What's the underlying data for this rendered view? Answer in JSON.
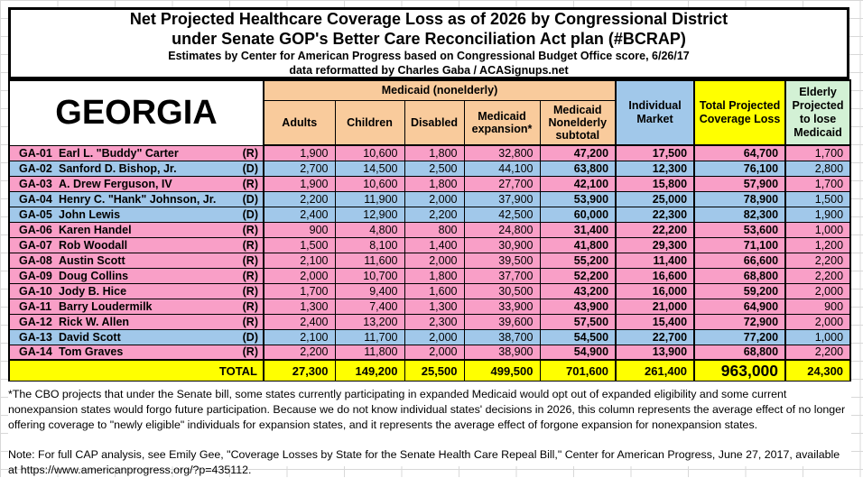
{
  "title": {
    "line1": "Net Projected Healthcare Coverage Loss as of 2026 by Congressional District",
    "line2": "under Senate GOP's Better Care Reconciliation Act plan (#BCRAP)",
    "line3": "Estimates by Center for American Progress based on Congressional Budget Office score, 6/26/17",
    "line4": "data reformatted by Charles Gaba / ACASignups.net"
  },
  "table": {
    "state": "GEORGIA",
    "header": {
      "medicaid_group": "Medicaid (nonelderly)",
      "adults": "Adults",
      "children": "Children",
      "disabled": "Disabled",
      "expansion": "Medicaid expansion*",
      "subtotal": "Medicaid Nonelderly subtotal",
      "individual": "Individual Market",
      "total": "Total Projected Coverage Loss",
      "elderly": "Elderly Projected to lose Medicaid"
    },
    "rows": [
      {
        "district": "GA-01",
        "name": "Earl L. \"Buddy\" Carter",
        "party": "(R)",
        "adults": "1,900",
        "children": "10,600",
        "disabled": "1,800",
        "expansion": "32,800",
        "subtotal": "47,200",
        "individual": "17,500",
        "total": "64,700",
        "elderly": "1,700"
      },
      {
        "district": "GA-02",
        "name": "Sanford D. Bishop, Jr.",
        "party": "(D)",
        "adults": "2,700",
        "children": "14,500",
        "disabled": "2,500",
        "expansion": "44,100",
        "subtotal": "63,800",
        "individual": "12,300",
        "total": "76,100",
        "elderly": "2,800"
      },
      {
        "district": "GA-03",
        "name": "A. Drew Ferguson, IV",
        "party": "(R)",
        "adults": "1,900",
        "children": "10,600",
        "disabled": "1,800",
        "expansion": "27,700",
        "subtotal": "42,100",
        "individual": "15,800",
        "total": "57,900",
        "elderly": "1,700"
      },
      {
        "district": "GA-04",
        "name": "Henry C. \"Hank\" Johnson, Jr.",
        "party": "(D)",
        "adults": "2,200",
        "children": "11,900",
        "disabled": "2,000",
        "expansion": "37,900",
        "subtotal": "53,900",
        "individual": "25,000",
        "total": "78,900",
        "elderly": "1,500"
      },
      {
        "district": "GA-05",
        "name": "John Lewis",
        "party": "(D)",
        "adults": "2,400",
        "children": "12,900",
        "disabled": "2,200",
        "expansion": "42,500",
        "subtotal": "60,000",
        "individual": "22,300",
        "total": "82,300",
        "elderly": "1,900"
      },
      {
        "district": "GA-06",
        "name": "Karen Handel",
        "party": "(R)",
        "adults": "900",
        "children": "4,800",
        "disabled": "800",
        "expansion": "24,800",
        "subtotal": "31,400",
        "individual": "22,200",
        "total": "53,600",
        "elderly": "1,000"
      },
      {
        "district": "GA-07",
        "name": "Rob Woodall",
        "party": "(R)",
        "adults": "1,500",
        "children": "8,100",
        "disabled": "1,400",
        "expansion": "30,900",
        "subtotal": "41,800",
        "individual": "29,300",
        "total": "71,100",
        "elderly": "1,200"
      },
      {
        "district": "GA-08",
        "name": "Austin Scott",
        "party": "(R)",
        "adults": "2,100",
        "children": "11,600",
        "disabled": "2,000",
        "expansion": "39,500",
        "subtotal": "55,200",
        "individual": "11,400",
        "total": "66,600",
        "elderly": "2,200"
      },
      {
        "district": "GA-09",
        "name": "Doug Collins",
        "party": "(R)",
        "adults": "2,000",
        "children": "10,700",
        "disabled": "1,800",
        "expansion": "37,700",
        "subtotal": "52,200",
        "individual": "16,600",
        "total": "68,800",
        "elderly": "2,200"
      },
      {
        "district": "GA-10",
        "name": "Jody B. Hice",
        "party": "(R)",
        "adults": "1,700",
        "children": "9,400",
        "disabled": "1,600",
        "expansion": "30,500",
        "subtotal": "43,200",
        "individual": "16,000",
        "total": "59,200",
        "elderly": "2,000"
      },
      {
        "district": "GA-11",
        "name": "Barry Loudermilk",
        "party": "(R)",
        "adults": "1,300",
        "children": "7,400",
        "disabled": "1,300",
        "expansion": "33,900",
        "subtotal": "43,900",
        "individual": "21,000",
        "total": "64,900",
        "elderly": "900"
      },
      {
        "district": "GA-12",
        "name": "Rick W. Allen",
        "party": "(R)",
        "adults": "2,400",
        "children": "13,200",
        "disabled": "2,300",
        "expansion": "39,600",
        "subtotal": "57,500",
        "individual": "15,400",
        "total": "72,900",
        "elderly": "2,000"
      },
      {
        "district": "GA-13",
        "name": "David Scott",
        "party": "(D)",
        "adults": "2,100",
        "children": "11,700",
        "disabled": "2,000",
        "expansion": "38,700",
        "subtotal": "54,500",
        "individual": "22,700",
        "total": "77,200",
        "elderly": "1,000"
      },
      {
        "district": "GA-14",
        "name": "Tom Graves",
        "party": "(R)",
        "adults": "2,200",
        "children": "11,800",
        "disabled": "2,000",
        "expansion": "38,900",
        "subtotal": "54,900",
        "individual": "13,900",
        "total": "68,800",
        "elderly": "2,200"
      }
    ],
    "total_row": {
      "label": "TOTAL",
      "adults": "27,300",
      "children": "149,200",
      "disabled": "25,500",
      "expansion": "499,500",
      "subtotal": "701,600",
      "individual": "261,400",
      "total": "963,000",
      "elderly": "24,300"
    }
  },
  "footnotes": {
    "asterisk_note": "*The CBO projects that under the Senate bill, some states currently participating in expanded Medicaid would opt out of expanded eligibility and some current nonexpansion states would forgo future participation. Because we do not know individual states' decisions in 2026, this column represents the average effect of no longer offering coverage to \"newly eligible\" individuals for expansion states, and it represents the average effect of forgone expansion for nonexpansion states.",
    "cap_note": "Note: For full CAP analysis, see Emily Gee, \"Coverage Losses by State for the Senate Health Care Repeal Bill,\" Center for American Progress, June 27, 2017, available at https://www.americanprogress.org/?p=435112."
  },
  "colors": {
    "republican_row": "#F99FC7",
    "democrat_row": "#A1C8EA",
    "medicaid_header": "#F9CB9C",
    "individual_header": "#A1C8EA",
    "total_header": "#FFFF00",
    "elderly_header": "#D3F1D5",
    "total_row": "#FFFF00",
    "gridline": "#D8D8D8"
  }
}
